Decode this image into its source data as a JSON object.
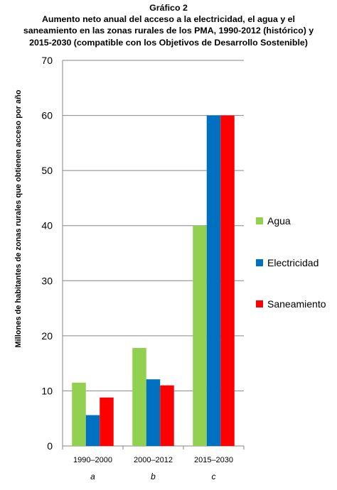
{
  "chart_data": {
    "type": "bar",
    "title": "Gráfico 2",
    "subtitle": "Aumento neto anual del acceso a la electricidad, el agua y el saneamiento en las zonas rurales de los PMA, 1990-2012 (histórico) y 2015-2030 (compatible con los Objetivos de Desarrollo Sostenible)",
    "ylabel": "Millones de habitantes de zonas rurales que obtienen acceso por año",
    "xlabel": "",
    "ylim": [
      0,
      70
    ],
    "yticks": [
      0,
      10,
      20,
      30,
      40,
      50,
      60,
      70
    ],
    "grid": true,
    "legend_position": "right",
    "categories": [
      "1990–2000",
      "2000–2012",
      "2015–2030"
    ],
    "category_notes": [
      "a",
      "b",
      "c"
    ],
    "series": [
      {
        "name": "Agua",
        "color": "#92D050",
        "values": [
          11.5,
          17.8,
          40
        ]
      },
      {
        "name": "Electricidad",
        "color": "#0070C0",
        "values": [
          5.6,
          12.1,
          60
        ]
      },
      {
        "name": "Saneamiento",
        "color": "#FF0000",
        "values": [
          8.8,
          11.0,
          60
        ]
      }
    ]
  }
}
